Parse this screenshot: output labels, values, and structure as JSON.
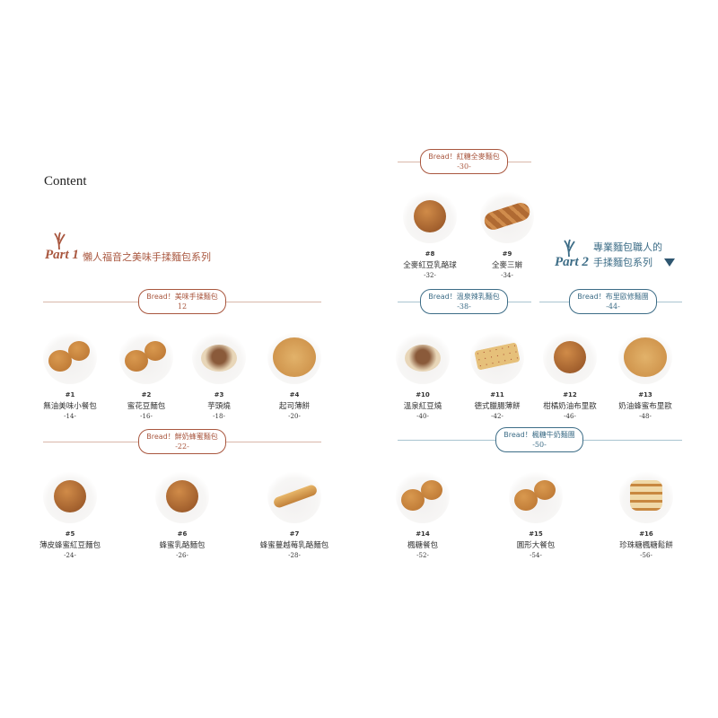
{
  "page_title": "Content",
  "colors": {
    "part1": "#a9573f",
    "part2": "#3d6d87",
    "line1": "#d9b7aa",
    "line2": "#a9c4d0"
  },
  "part1": {
    "label": "Part 1",
    "title": "懶人福音之美味手揉麵包系列",
    "icon": "wheat-icon"
  },
  "part2": {
    "label": "Part 2",
    "title_line1": "專業麵包職人的",
    "title_line2": "手揉麵包系列",
    "icon": "wheat-icon",
    "marker": "triangle-down-icon"
  },
  "sections": [
    {
      "title": "Bread！美味手揉麵包",
      "page": "12"
    },
    {
      "title": "Bread！鮮奶蜂蜜麵包",
      "page": "-22-"
    },
    {
      "title": "Bread！紅糖全麥麵包",
      "page": "-30-"
    },
    {
      "title": "Bread！溫泉辣乳麵包",
      "page": "-38-"
    },
    {
      "title": "Bread！布里歐修麵團",
      "page": "-44-"
    },
    {
      "title": "Bread！楓糖牛奶麵團",
      "page": "-50-"
    }
  ],
  "items": [
    {
      "num": "#1",
      "name": "無油美味小餐包",
      "page": "-14-"
    },
    {
      "num": "#2",
      "name": "蜜花豆麵包",
      "page": "-16-"
    },
    {
      "num": "#3",
      "name": "芋頭燒",
      "page": "-18-"
    },
    {
      "num": "#4",
      "name": "起司薄餅",
      "page": "-20-"
    },
    {
      "num": "#5",
      "name": "薄皮蜂蜜紅豆麵包",
      "page": "-24-"
    },
    {
      "num": "#6",
      "name": "蜂蜜乳酪麵包",
      "page": "-26-"
    },
    {
      "num": "#7",
      "name": "蜂蜜蔓越莓乳酪麵包",
      "page": "-28-"
    },
    {
      "num": "#8",
      "name": "全麥紅豆乳酪球",
      "page": "-32-"
    },
    {
      "num": "#9",
      "name": "全麥三辮",
      "page": "-34-"
    },
    {
      "num": "#10",
      "name": "溫泉紅豆燒",
      "page": "-40-"
    },
    {
      "num": "#11",
      "name": "德式臘腸薄餅",
      "page": "-42-"
    },
    {
      "num": "#12",
      "name": "柑橘奶油布里歐",
      "page": "-46-"
    },
    {
      "num": "#13",
      "name": "奶油蜂蜜布里歐",
      "page": "-48-"
    },
    {
      "num": "#14",
      "name": "楓糖餐包",
      "page": "-52-"
    },
    {
      "num": "#15",
      "name": "圓形大餐包",
      "page": "-54-"
    },
    {
      "num": "#16",
      "name": "珍珠糖楓糖鬆餅",
      "page": "-56-"
    }
  ]
}
